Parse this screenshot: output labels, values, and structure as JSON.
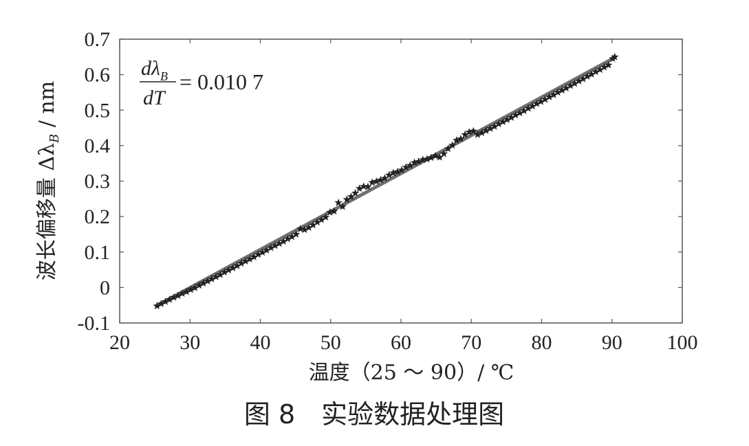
{
  "chart_data": {
    "type": "scatter",
    "xlabel": "温度（25 ～ 90）/ ℃",
    "ylabel": "波长偏移量 Δλ_B / nm",
    "ylabel_main": "波长偏移量 Δλ",
    "ylabel_sub": "B",
    "ylabel_unit": " / nm",
    "xlim": [
      20,
      100
    ],
    "ylim": [
      -0.1,
      0.7
    ],
    "x_ticks": [
      20,
      30,
      40,
      50,
      60,
      70,
      80,
      90,
      100
    ],
    "y_ticks": [
      "-0.1",
      "0",
      "0.1",
      "0.2",
      "0.3",
      "0.4",
      "0.5",
      "0.6",
      "0.7"
    ],
    "y_tick_values": [
      -0.1,
      0,
      0.1,
      0.2,
      0.3,
      0.4,
      0.5,
      0.6,
      0.7
    ],
    "grid": false,
    "annotation": {
      "num_d": "dλ",
      "num_sub": "B",
      "den": "dT",
      "value": "= 0.010 7"
    },
    "fit_line": {
      "x": [
        25.3,
        90.3
      ],
      "y": [
        -0.051,
        0.647
      ],
      "slope": 0.0107,
      "color": "#707070"
    },
    "series": [
      {
        "marker": "star",
        "color": "#222222",
        "points": [
          [
            25.3,
            -0.052
          ],
          [
            25.9,
            -0.046
          ],
          [
            26.5,
            -0.04
          ],
          [
            27.1,
            -0.034
          ],
          [
            27.7,
            -0.028
          ],
          [
            28.3,
            -0.023
          ],
          [
            28.9,
            -0.017
          ],
          [
            29.5,
            -0.012
          ],
          [
            30.1,
            -0.006
          ],
          [
            30.7,
            -0.001
          ],
          [
            31.3,
            0.006
          ],
          [
            31.9,
            0.012
          ],
          [
            32.5,
            0.018
          ],
          [
            33.1,
            0.024
          ],
          [
            33.7,
            0.03
          ],
          [
            34.3,
            0.036
          ],
          [
            34.9,
            0.043
          ],
          [
            35.5,
            0.049
          ],
          [
            36.1,
            0.055
          ],
          [
            36.7,
            0.061
          ],
          [
            37.3,
            0.068
          ],
          [
            37.9,
            0.074
          ],
          [
            38.5,
            0.08
          ],
          [
            39.1,
            0.086
          ],
          [
            39.7,
            0.093
          ],
          [
            40.3,
            0.099
          ],
          [
            40.9,
            0.105
          ],
          [
            41.5,
            0.112
          ],
          [
            42.1,
            0.118
          ],
          [
            42.7,
            0.124
          ],
          [
            43.3,
            0.13
          ],
          [
            43.9,
            0.137
          ],
          [
            44.5,
            0.143
          ],
          [
            45.1,
            0.15
          ],
          [
            45.7,
            0.165
          ],
          [
            46.3,
            0.163
          ],
          [
            46.9,
            0.169
          ],
          [
            47.5,
            0.176
          ],
          [
            48.1,
            0.184
          ],
          [
            48.7,
            0.191
          ],
          [
            49.3,
            0.198
          ],
          [
            49.9,
            0.212
          ],
          [
            50.5,
            0.215
          ],
          [
            51.1,
            0.239
          ],
          [
            51.7,
            0.228
          ],
          [
            52.3,
            0.248
          ],
          [
            52.9,
            0.256
          ],
          [
            53.5,
            0.266
          ],
          [
            54.1,
            0.279
          ],
          [
            54.7,
            0.285
          ],
          [
            55.3,
            0.284
          ],
          [
            55.9,
            0.296
          ],
          [
            56.5,
            0.299
          ],
          [
            57.1,
            0.303
          ],
          [
            57.7,
            0.308
          ],
          [
            58.3,
            0.317
          ],
          [
            58.9,
            0.323
          ],
          [
            59.5,
            0.326
          ],
          [
            60.1,
            0.331
          ],
          [
            60.7,
            0.339
          ],
          [
            61.3,
            0.344
          ],
          [
            61.9,
            0.352
          ],
          [
            62.5,
            0.355
          ],
          [
            63.1,
            0.36
          ],
          [
            63.7,
            0.362
          ],
          [
            64.3,
            0.366
          ],
          [
            64.9,
            0.371
          ],
          [
            65.5,
            0.367
          ],
          [
            66.1,
            0.377
          ],
          [
            66.7,
            0.391
          ],
          [
            67.3,
            0.401
          ],
          [
            67.9,
            0.415
          ],
          [
            68.5,
            0.419
          ],
          [
            69.1,
            0.431
          ],
          [
            69.7,
            0.438
          ],
          [
            70.3,
            0.441
          ],
          [
            70.9,
            0.431
          ],
          [
            71.5,
            0.436
          ],
          [
            72.1,
            0.442
          ],
          [
            72.7,
            0.448
          ],
          [
            73.3,
            0.454
          ],
          [
            73.9,
            0.461
          ],
          [
            74.5,
            0.467
          ],
          [
            75.1,
            0.473
          ],
          [
            75.7,
            0.479
          ],
          [
            76.3,
            0.486
          ],
          [
            76.9,
            0.492
          ],
          [
            77.5,
            0.498
          ],
          [
            78.1,
            0.505
          ],
          [
            78.7,
            0.511
          ],
          [
            79.3,
            0.518
          ],
          [
            79.9,
            0.524
          ],
          [
            80.5,
            0.53
          ],
          [
            81.1,
            0.537
          ],
          [
            81.7,
            0.543
          ],
          [
            82.3,
            0.55
          ],
          [
            82.9,
            0.556
          ],
          [
            83.5,
            0.562
          ],
          [
            84.1,
            0.569
          ],
          [
            84.7,
            0.575
          ],
          [
            85.3,
            0.582
          ],
          [
            85.9,
            0.588
          ],
          [
            86.5,
            0.595
          ],
          [
            87.1,
            0.601
          ],
          [
            87.7,
            0.608
          ],
          [
            88.3,
            0.614
          ],
          [
            88.9,
            0.621
          ],
          [
            89.5,
            0.627
          ],
          [
            90.1,
            0.645
          ],
          [
            90.4,
            0.65
          ]
        ]
      }
    ]
  },
  "caption": "图 8　实验数据处理图"
}
